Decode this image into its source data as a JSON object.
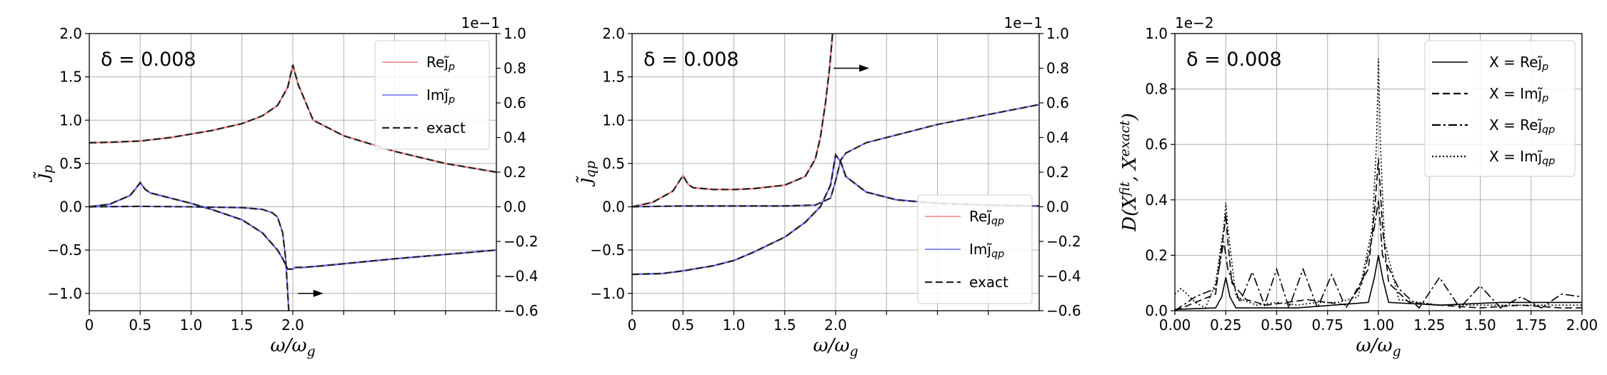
{
  "chart_data": [
    {
      "type": "line",
      "annotation": "δ = 0.008",
      "xlabel": "ω/ω_g",
      "ylabel": "j̃_p",
      "xlim": [
        0,
        4
      ],
      "ylim": [
        -1.2,
        2.0
      ],
      "xticks": [
        "0",
        "0.5",
        "1.0",
        "1.5",
        "2.0"
      ],
      "xtick_values": [
        0,
        0.5,
        1.0,
        1.5,
        2.0
      ],
      "yticks": [
        "−1.0",
        "−0.5",
        "0.0",
        "0.5",
        "1.0",
        "1.5",
        "2.0"
      ],
      "ytick_values": [
        -1.0,
        -0.5,
        0.0,
        0.5,
        1.0,
        1.5,
        2.0
      ],
      "y2lim": [
        -0.6,
        1.0
      ],
      "y2ticks": [
        "−0.6",
        "−0.4",
        "−0.2",
        "0.0",
        "0.2",
        "0.4",
        "0.6",
        "0.8",
        "1.0"
      ],
      "y2tick_values": [
        -0.6,
        -0.4,
        -0.2,
        0.0,
        0.2,
        0.4,
        0.6,
        0.8,
        1.0
      ],
      "y2_multiplier": "1e−1",
      "grid": true,
      "legend_position": "top-right",
      "legend": [
        {
          "label": "Rej̃_p",
          "color": "#f08080",
          "dash": "solid"
        },
        {
          "label": "Imj̃_p",
          "color": "#6a6aff",
          "dash": "solid"
        },
        {
          "label": "exact",
          "color": "#222222",
          "dash": "dashed"
        }
      ],
      "arrow": {
        "from": [
          2.05,
          -1.0
        ],
        "to": [
          2.3,
          -1.0
        ],
        "direction": "right"
      },
      "series": [
        {
          "name": "Rej̃_p",
          "x": [
            0,
            0.2,
            0.5,
            0.8,
            1.0,
            1.2,
            1.5,
            1.7,
            1.85,
            1.95,
            2.0,
            2.05,
            2.2,
            2.5,
            3.0,
            3.5,
            4.0
          ],
          "y": [
            0.74,
            0.745,
            0.76,
            0.8,
            0.84,
            0.88,
            0.96,
            1.05,
            1.17,
            1.38,
            1.64,
            1.42,
            1.0,
            0.82,
            0.64,
            0.5,
            0.4
          ]
        },
        {
          "name": "Imj̃_p",
          "x": [
            0,
            0.2,
            0.4,
            0.45,
            0.5,
            0.55,
            0.6,
            0.8,
            1.0,
            1.2,
            1.5,
            1.7,
            1.85,
            1.9,
            1.95,
            2.0,
            2.02,
            2.05,
            2.1,
            2.3,
            3.0,
            4.0
          ],
          "y": [
            0.0,
            0.03,
            0.13,
            0.2,
            0.28,
            0.2,
            0.16,
            0.1,
            0.04,
            -0.03,
            -0.15,
            -0.3,
            -0.5,
            -0.6,
            -0.72,
            -0.72,
            -0.7,
            -0.7,
            -0.7,
            -0.68,
            -0.6,
            -0.5
          ]
        },
        {
          "name": "exact",
          "x": [
            0,
            0.5,
            1.0,
            1.5,
            1.7,
            1.8,
            1.85,
            1.9,
            1.93,
            1.96
          ],
          "y": [
            0.0,
            0.005,
            0.0,
            -0.01,
            -0.03,
            -0.07,
            -0.12,
            -0.3,
            -0.6,
            -1.2
          ]
        }
      ]
    },
    {
      "type": "line",
      "annotation": "δ = 0.008",
      "xlabel": "ω/ω_g",
      "ylabel": "j̃_qp",
      "xlim": [
        0,
        4
      ],
      "ylim": [
        -1.2,
        2.0
      ],
      "xticks": [
        "0",
        "0.5",
        "1.0",
        "1.5",
        "2.0"
      ],
      "xtick_values": [
        0,
        0.5,
        1.0,
        1.5,
        2.0
      ],
      "yticks": [
        "−1.0",
        "−0.5",
        "0.0",
        "0.5",
        "1.0",
        "1.5",
        "2.0"
      ],
      "ytick_values": [
        -1.0,
        -0.5,
        0.0,
        0.5,
        1.0,
        1.5,
        2.0
      ],
      "y2lim": [
        -0.6,
        1.0
      ],
      "y2ticks": [
        "−0.6",
        "−0.4",
        "−0.2",
        "0.0",
        "0.2",
        "0.4",
        "0.6",
        "0.8",
        "1.0"
      ],
      "y2tick_values": [
        -0.6,
        -0.4,
        -0.2,
        0.0,
        0.2,
        0.4,
        0.6,
        0.8,
        1.0
      ],
      "y2_multiplier": "1e−1",
      "grid": true,
      "legend_position": "bottom-right",
      "legend": [
        {
          "label": "Rej̃_qp",
          "color": "#f08080",
          "dash": "solid"
        },
        {
          "label": "Imj̃_qp",
          "color": "#6a6aff",
          "dash": "solid"
        },
        {
          "label": "exact",
          "color": "#222222",
          "dash": "dashed"
        }
      ],
      "arrow": {
        "from": [
          1.98,
          1.6
        ],
        "to": [
          2.33,
          1.6
        ],
        "direction": "right"
      },
      "series": [
        {
          "name": "Rej̃_qp",
          "x": [
            0,
            0.2,
            0.4,
            0.45,
            0.5,
            0.55,
            0.6,
            0.8,
            1.0,
            1.2,
            1.5,
            1.7,
            1.8,
            1.85,
            1.9,
            1.94,
            1.97
          ],
          "y": [
            0.0,
            0.05,
            0.18,
            0.27,
            0.36,
            0.26,
            0.22,
            0.2,
            0.2,
            0.21,
            0.25,
            0.35,
            0.55,
            0.8,
            1.2,
            1.6,
            2.0
          ]
        },
        {
          "name": "Imj̃_qp",
          "x": [
            0,
            0.3,
            0.5,
            0.8,
            1.0,
            1.2,
            1.5,
            1.7,
            1.85,
            1.95,
            2.0,
            2.05,
            2.1,
            2.3,
            2.6,
            3.0,
            3.5,
            4.0
          ],
          "y": [
            -0.78,
            -0.77,
            -0.74,
            -0.68,
            -0.62,
            -0.52,
            -0.35,
            -0.18,
            0.0,
            0.25,
            0.6,
            0.52,
            0.35,
            0.17,
            0.08,
            0.04,
            0.02,
            0.01
          ]
        },
        {
          "name": "exact",
          "x": [
            0,
            0.5,
            1.0,
            1.5,
            1.8,
            1.95,
            2.0,
            2.05,
            2.1,
            2.3,
            3.0,
            4.0
          ],
          "y": [
            0.0,
            0.01,
            0.01,
            0.01,
            0.02,
            0.1,
            0.3,
            0.54,
            0.62,
            0.74,
            0.95,
            1.18
          ]
        }
      ]
    },
    {
      "type": "line",
      "annotation": "δ = 0.008",
      "xlabel": "ω/ω_g",
      "ylabel": "D(X^fit, X^exact)",
      "xlim": [
        0,
        2
      ],
      "ylim": [
        0,
        1.0
      ],
      "xticks": [
        "0.00",
        "0.25",
        "0.50",
        "0.75",
        "1.00",
        "1.25",
        "1.50",
        "1.75",
        "2.00"
      ],
      "xtick_values": [
        0,
        0.25,
        0.5,
        0.75,
        1.0,
        1.25,
        1.5,
        1.75,
        2.0
      ],
      "yticks": [
        "0.0",
        "0.2",
        "0.4",
        "0.6",
        "0.8",
        "1.0"
      ],
      "ytick_values": [
        0.0,
        0.2,
        0.4,
        0.6,
        0.8,
        1.0
      ],
      "y_multiplier": "1e−2",
      "grid": true,
      "legend_position": "top-right",
      "legend": [
        {
          "label": "X = Rej̃_p",
          "color": "#000000",
          "dash": "solid"
        },
        {
          "label": "X = Imj̃_p",
          "color": "#000000",
          "dash": "dashed"
        },
        {
          "label": "X = Rej̃_qp",
          "color": "#000000",
          "dash": "dashdot"
        },
        {
          "label": "X = Imj̃_qp",
          "color": "#000000",
          "dash": "dotted"
        }
      ],
      "series": [
        {
          "name": "X = Rej̃_p",
          "x": [
            0,
            0.2,
            0.23,
            0.25,
            0.27,
            0.3,
            0.6,
            0.95,
            0.98,
            1.0,
            1.02,
            1.05,
            1.3,
            1.6,
            1.8,
            2.0
          ],
          "y": [
            0.005,
            0.01,
            0.05,
            0.12,
            0.05,
            0.01,
            0.01,
            0.03,
            0.12,
            0.2,
            0.12,
            0.03,
            0.02,
            0.03,
            0.03,
            0.03
          ]
        },
        {
          "name": "X = Imj̃_p",
          "x": [
            0,
            0.1,
            0.2,
            0.22,
            0.24,
            0.25,
            0.26,
            0.28,
            0.35,
            0.45,
            0.55,
            0.65,
            0.75,
            0.85,
            0.95,
            0.98,
            1.0,
            1.02,
            1.05,
            1.15,
            1.3,
            1.5,
            1.7,
            1.9,
            2.0
          ],
          "y": [
            0.0,
            0.03,
            0.06,
            0.18,
            0.28,
            0.35,
            0.25,
            0.1,
            0.04,
            0.02,
            0.03,
            0.04,
            0.03,
            0.02,
            0.15,
            0.35,
            0.55,
            0.3,
            0.1,
            0.03,
            0.02,
            0.01,
            0.02,
            0.01,
            0.01
          ]
        },
        {
          "name": "X = Rej̃_qp",
          "x": [
            0,
            0.1,
            0.2,
            0.24,
            0.26,
            0.32,
            0.38,
            0.44,
            0.5,
            0.56,
            0.63,
            0.7,
            0.77,
            0.84,
            0.92,
            0.98,
            1.0,
            1.02,
            1.1,
            1.2,
            1.3,
            1.4,
            1.5,
            1.6,
            1.7,
            1.8,
            1.9,
            2.0
          ],
          "y": [
            0.0,
            0.05,
            0.08,
            0.25,
            0.15,
            0.03,
            0.14,
            0.02,
            0.15,
            0.01,
            0.15,
            0.01,
            0.13,
            0.01,
            0.1,
            0.3,
            0.4,
            0.2,
            0.08,
            0.01,
            0.12,
            0.01,
            0.09,
            0.01,
            0.05,
            0.01,
            0.06,
            0.05
          ]
        },
        {
          "name": "X = Imj̃_qp",
          "x": [
            0,
            0.03,
            0.06,
            0.1,
            0.15,
            0.2,
            0.24,
            0.25,
            0.26,
            0.3,
            0.4,
            0.5,
            0.6,
            0.7,
            0.8,
            0.9,
            0.97,
            0.99,
            1.0,
            1.01,
            1.03,
            1.1,
            1.3,
            1.5,
            1.7,
            1.9,
            2.0
          ],
          "y": [
            0.06,
            0.08,
            0.06,
            0.03,
            0.01,
            0.1,
            0.3,
            0.39,
            0.3,
            0.05,
            0.02,
            0.03,
            0.02,
            0.03,
            0.03,
            0.05,
            0.3,
            0.6,
            0.91,
            0.6,
            0.25,
            0.04,
            0.02,
            0.02,
            0.02,
            0.02,
            0.02
          ]
        }
      ]
    }
  ]
}
